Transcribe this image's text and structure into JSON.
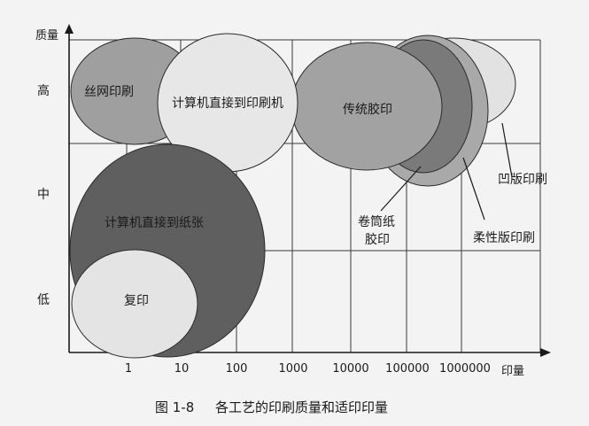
{
  "axes": {
    "y_title": "质量",
    "x_title": "印量",
    "y_levels": [
      "高",
      "中",
      "低"
    ],
    "x_ticks": [
      "1",
      "10",
      "100",
      "1000",
      "10000",
      "100000",
      "1000000"
    ]
  },
  "regions": {
    "silkscreen": "丝网印刷",
    "ctp_press": "计算机直接到印刷机",
    "offset": "传统胶印",
    "web_offset": "卷筒纸胶印",
    "gravure": "凹版印刷",
    "flexo": "柔性版印刷",
    "ctp_paper": "计算机直接到纸张",
    "copy": "复印"
  },
  "caption": {
    "number": "图 1-8",
    "text": "各工艺的印刷质量和适印印量"
  },
  "colors": {
    "light": "#e6e6e6",
    "mid": "#a4a4a4",
    "dark": "#6e6e6e",
    "darker": "#5c5c5c",
    "outline": "#2a2a2a"
  }
}
